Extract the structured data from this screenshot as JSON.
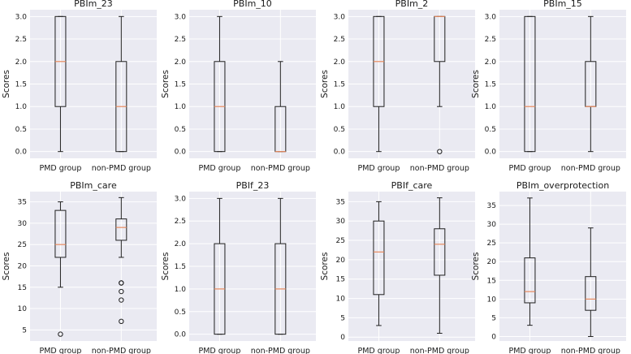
{
  "colors": {
    "plot_background": "#eaeaf2",
    "grid": "#ffffff",
    "box": "#1f1f1f",
    "median": "#e88a5e",
    "flier": "#1f1f1f"
  },
  "chart_data": [
    {
      "type": "box",
      "title": "PBIm_23",
      "xlabel": "",
      "ylabel": "Scores",
      "ylim": [
        -0.15,
        3.15
      ],
      "yticks": [
        "0.0",
        "0.5",
        "1.0",
        "1.5",
        "2.0",
        "2.5",
        "3.0"
      ],
      "yticks_values": [
        0,
        0.5,
        1,
        1.5,
        2,
        2.5,
        3
      ],
      "categories": [
        "PMD group",
        "non-PMD group"
      ],
      "boxes": [
        {
          "name": "PMD group",
          "whislo": 0,
          "q1": 1,
          "med": 2,
          "q3": 3,
          "whishi": 3,
          "fliers": []
        },
        {
          "name": "non-PMD group",
          "whislo": 0,
          "q1": 0,
          "med": 1,
          "q3": 2,
          "whishi": 3,
          "fliers": []
        }
      ]
    },
    {
      "type": "box",
      "title": "PBIm_10",
      "xlabel": "",
      "ylabel": "Scores",
      "ylim": [
        -0.15,
        3.15
      ],
      "yticks": [
        "0.0",
        "0.5",
        "1.0",
        "1.5",
        "2.0",
        "2.5",
        "3.0"
      ],
      "yticks_values": [
        0,
        0.5,
        1,
        1.5,
        2,
        2.5,
        3
      ],
      "categories": [
        "PMD group",
        "non-PMD group"
      ],
      "boxes": [
        {
          "name": "PMD group",
          "whislo": 0,
          "q1": 0,
          "med": 1,
          "q3": 2,
          "whishi": 3,
          "fliers": []
        },
        {
          "name": "non-PMD group",
          "whislo": 0,
          "q1": 0,
          "med": 0,
          "q3": 1,
          "whishi": 2,
          "fliers": []
        }
      ]
    },
    {
      "type": "box",
      "title": "PBIm_2",
      "xlabel": "",
      "ylabel": "Scores",
      "ylim": [
        -0.15,
        3.15
      ],
      "yticks": [
        "0.0",
        "0.5",
        "1.0",
        "1.5",
        "2.0",
        "2.5",
        "3.0"
      ],
      "yticks_values": [
        0,
        0.5,
        1,
        1.5,
        2,
        2.5,
        3
      ],
      "categories": [
        "PMD group",
        "non-PMD group"
      ],
      "boxes": [
        {
          "name": "PMD group",
          "whislo": 0,
          "q1": 1,
          "med": 2,
          "q3": 3,
          "whishi": 3,
          "fliers": []
        },
        {
          "name": "non-PMD group",
          "whislo": 1,
          "q1": 2,
          "med": 3,
          "q3": 3,
          "whishi": 3,
          "fliers": [
            0
          ]
        }
      ]
    },
    {
      "type": "box",
      "title": "PBIm_15",
      "xlabel": "",
      "ylabel": "Scores",
      "ylim": [
        -0.15,
        3.15
      ],
      "yticks": [
        "0.0",
        "0.5",
        "1.0",
        "1.5",
        "2.0",
        "2.5",
        "3.0"
      ],
      "yticks_values": [
        0,
        0.5,
        1,
        1.5,
        2,
        2.5,
        3
      ],
      "categories": [
        "PMD group",
        "non-PMD group"
      ],
      "boxes": [
        {
          "name": "PMD group",
          "whislo": 0,
          "q1": 0,
          "med": 1,
          "q3": 3,
          "whishi": 3,
          "fliers": []
        },
        {
          "name": "non-PMD group",
          "whislo": 0,
          "q1": 1,
          "med": 1,
          "q3": 2,
          "whishi": 3,
          "fliers": []
        }
      ]
    },
    {
      "type": "box",
      "title": "PBIm_care",
      "xlabel": "",
      "ylabel": "Scores",
      "ylim": [
        2.4,
        37.4
      ],
      "yticks": [
        "5",
        "10",
        "15",
        "20",
        "25",
        "30",
        "35"
      ],
      "yticks_values": [
        5,
        10,
        15,
        20,
        25,
        30,
        35
      ],
      "categories": [
        "PMD group",
        "non-PMD group"
      ],
      "boxes": [
        {
          "name": "PMD group",
          "whislo": 15,
          "q1": 22,
          "med": 25,
          "q3": 33,
          "whishi": 35,
          "fliers": [
            4
          ]
        },
        {
          "name": "non-PMD group",
          "whislo": 22,
          "q1": 26,
          "med": 29,
          "q3": 31,
          "whishi": 36,
          "fliers": [
            16,
            16,
            14,
            12,
            7
          ]
        }
      ]
    },
    {
      "type": "box",
      "title": "PBIf_23",
      "xlabel": "",
      "ylabel": "Scores",
      "ylim": [
        -0.15,
        3.15
      ],
      "yticks": [
        "0.0",
        "0.5",
        "1.0",
        "1.5",
        "2.0",
        "2.5",
        "3.0"
      ],
      "yticks_values": [
        0,
        0.5,
        1,
        1.5,
        2,
        2.5,
        3
      ],
      "categories": [
        "PMD group",
        "non-PMD group"
      ],
      "boxes": [
        {
          "name": "PMD group",
          "whislo": 0,
          "q1": 0,
          "med": 1,
          "q3": 2,
          "whishi": 3,
          "fliers": []
        },
        {
          "name": "non-PMD group",
          "whislo": 0,
          "q1": 0,
          "med": 1,
          "q3": 2,
          "whishi": 3,
          "fliers": []
        }
      ]
    },
    {
      "type": "box",
      "title": "PBIf_care",
      "xlabel": "",
      "ylabel": "Scores",
      "ylim": [
        -1.0,
        37.6
      ],
      "yticks": [
        "0",
        "5",
        "10",
        "15",
        "20",
        "25",
        "30",
        "35"
      ],
      "yticks_values": [
        0,
        5,
        10,
        15,
        20,
        25,
        30,
        35
      ],
      "categories": [
        "PMD group",
        "non-PMD group"
      ],
      "boxes": [
        {
          "name": "PMD group",
          "whislo": 3,
          "q1": 11,
          "med": 22,
          "q3": 30,
          "whishi": 35,
          "fliers": []
        },
        {
          "name": "non-PMD group",
          "whislo": 1,
          "q1": 16,
          "med": 24,
          "q3": 28,
          "whishi": 36,
          "fliers": []
        }
      ]
    },
    {
      "type": "box",
      "title": "PBIm_overprotection",
      "xlabel": "",
      "ylabel": "Scores",
      "ylim": [
        -1.2,
        38.7
      ],
      "yticks": [
        "0",
        "5",
        "10",
        "15",
        "20",
        "25",
        "30",
        "35"
      ],
      "yticks_values": [
        0,
        5,
        10,
        15,
        20,
        25,
        30,
        35
      ],
      "categories": [
        "PMD group",
        "non-PMD group"
      ],
      "boxes": [
        {
          "name": "PMD group",
          "whislo": 3,
          "q1": 9,
          "med": 12,
          "q3": 21,
          "whishi": 37,
          "fliers": []
        },
        {
          "name": "non-PMD group",
          "whislo": 0,
          "q1": 7,
          "med": 10,
          "q3": 16,
          "whishi": 29,
          "fliers": []
        }
      ]
    }
  ]
}
